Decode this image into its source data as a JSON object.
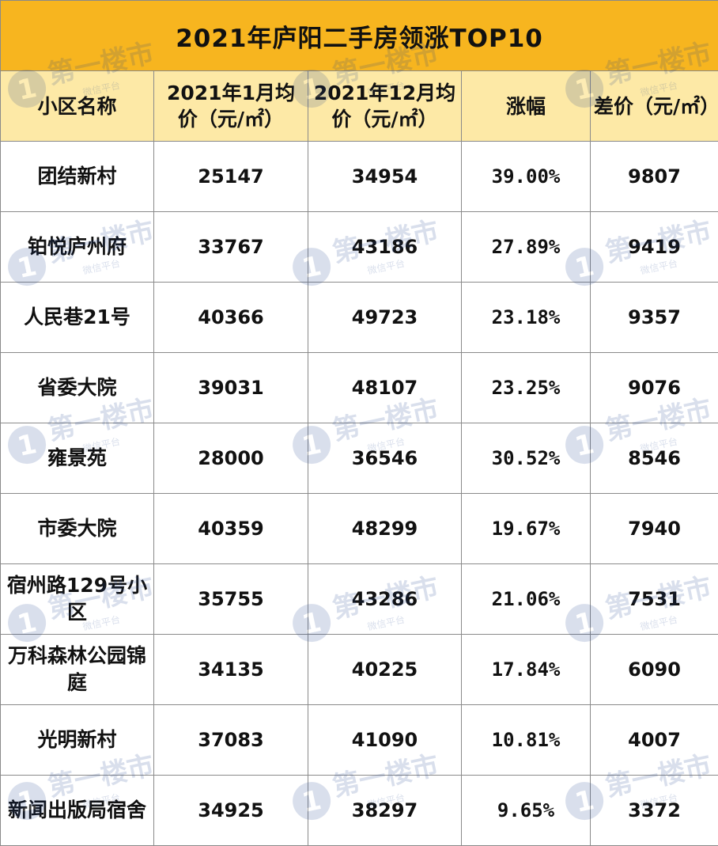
{
  "title": "2021年庐阳二手房领涨TOP10",
  "headers": {
    "name": "小区名称",
    "jan_price": "2021年1月均价（元/㎡）",
    "dec_price": "2021年12月均价（元/㎡）",
    "growth": "涨幅",
    "diff": "差价（元/㎡）"
  },
  "rows": [
    {
      "name": "团结新村",
      "jan": "25147",
      "dec": "34954",
      "growth": "39.00%",
      "diff": "9807"
    },
    {
      "name": "铂悦庐州府",
      "jan": "33767",
      "dec": "43186",
      "growth": "27.89%",
      "diff": "9419"
    },
    {
      "name": "人民巷21号",
      "jan": "40366",
      "dec": "49723",
      "growth": "23.18%",
      "diff": "9357"
    },
    {
      "name": "省委大院",
      "jan": "39031",
      "dec": "48107",
      "growth": "23.25%",
      "diff": "9076"
    },
    {
      "name": "雍景苑",
      "jan": "28000",
      "dec": "36546",
      "growth": "30.52%",
      "diff": "8546"
    },
    {
      "name": "市委大院",
      "jan": "40359",
      "dec": "48299",
      "growth": "19.67%",
      "diff": "7940"
    },
    {
      "name": "宿州路129号小区",
      "jan": "35755",
      "dec": "43286",
      "growth": "21.06%",
      "diff": "7531"
    },
    {
      "name": "万科森林公园锦庭",
      "jan": "34135",
      "dec": "40225",
      "growth": "17.84%",
      "diff": "6090"
    },
    {
      "name": "光明新村",
      "jan": "37083",
      "dec": "41090",
      "growth": "10.81%",
      "diff": "4007"
    },
    {
      "name": "新闻出版局宿舍",
      "jan": "34925",
      "dec": "38297",
      "growth": "9.65%",
      "diff": "3372"
    }
  ],
  "watermark": {
    "logo_text": "第一楼市",
    "sub_text": "微信平台",
    "badge": "1",
    "color": "#1a3e8c"
  }
}
